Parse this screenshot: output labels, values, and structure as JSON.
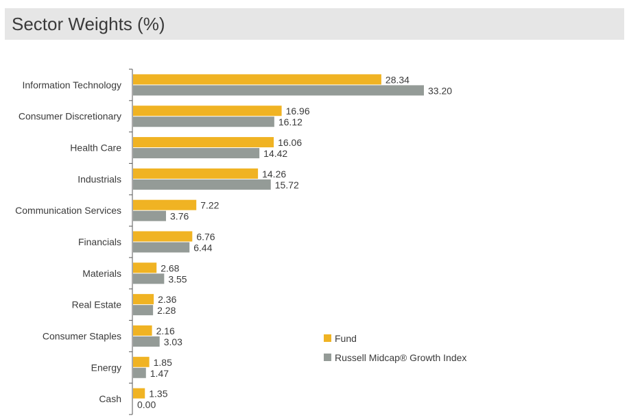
{
  "chart_data": {
    "type": "bar",
    "orientation": "horizontal",
    "title": "Sector Weights (%)",
    "categories": [
      "Information Technology",
      "Consumer Discretionary",
      "Health Care",
      "Industrials",
      "Communication Services",
      "Financials",
      "Materials",
      "Real Estate",
      "Consumer Staples",
      "Energy",
      "Cash"
    ],
    "series": [
      {
        "name": "Fund",
        "color": "#f0b323",
        "values": [
          28.34,
          16.96,
          16.06,
          14.26,
          7.22,
          6.76,
          2.68,
          2.36,
          2.16,
          1.85,
          1.35
        ],
        "labels": [
          "28.34",
          "16.96",
          "16.06",
          "14.26",
          "7.22",
          "6.76",
          "2.68",
          "2.36",
          "2.16",
          "1.85",
          "1.35"
        ]
      },
      {
        "name": "Russell Midcap® Growth Index",
        "color": "#949b97",
        "values": [
          33.2,
          16.12,
          14.42,
          15.72,
          3.76,
          6.44,
          3.55,
          2.28,
          3.03,
          1.47,
          0.0
        ],
        "labels": [
          "33.20",
          "16.12",
          "14.42",
          "15.72",
          "3.76",
          "6.44",
          "3.55",
          "2.28",
          "3.03",
          "1.47",
          "0.00"
        ]
      }
    ],
    "xlim": [
      0,
      35
    ],
    "grid": false,
    "legend_position": "inside-right"
  }
}
